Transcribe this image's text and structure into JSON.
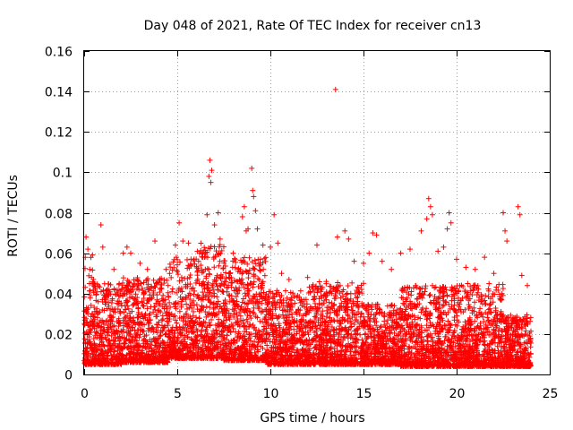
{
  "chart_data": {
    "type": "scatter",
    "title": "Day 048 of 2021, Rate Of TEC Index for receiver cn13",
    "xlabel": "GPS time / hours",
    "ylabel": "ROTI / TECUs",
    "xlim": [
      0,
      25
    ],
    "ylim": [
      0,
      0.16
    ],
    "xticks": [
      "0",
      "5",
      "10",
      "15",
      "20",
      "25"
    ],
    "yticks": [
      "0",
      "0.02",
      "0.04",
      "0.06",
      "0.08",
      "0.1",
      "0.12",
      "0.14",
      "0.16"
    ],
    "grid": true,
    "marker": "+",
    "color": "#ff0000",
    "series": [
      {
        "name": "ROTI",
        "points": [
          [
            0.1,
            0.068
          ],
          [
            0.2,
            0.062
          ],
          [
            0.3,
            0.052
          ],
          [
            0.5,
            0.047
          ],
          [
            0.9,
            0.074
          ],
          [
            1.0,
            0.063
          ],
          [
            1.6,
            0.052
          ],
          [
            2.1,
            0.06
          ],
          [
            2.3,
            0.063
          ],
          [
            2.5,
            0.06
          ],
          [
            3.0,
            0.055
          ],
          [
            3.4,
            0.052
          ],
          [
            3.8,
            0.066
          ],
          [
            4.4,
            0.052
          ],
          [
            4.9,
            0.064
          ],
          [
            5.1,
            0.075
          ],
          [
            5.3,
            0.066
          ],
          [
            5.6,
            0.065
          ],
          [
            5.9,
            0.057
          ],
          [
            6.2,
            0.06
          ],
          [
            6.6,
            0.079
          ],
          [
            6.7,
            0.098
          ],
          [
            6.75,
            0.106
          ],
          [
            6.8,
            0.095
          ],
          [
            6.85,
            0.101
          ],
          [
            7.0,
            0.074
          ],
          [
            7.2,
            0.08
          ],
          [
            7.3,
            0.067
          ],
          [
            8.0,
            0.06
          ],
          [
            8.5,
            0.078
          ],
          [
            8.6,
            0.083
          ],
          [
            8.7,
            0.071
          ],
          [
            8.8,
            0.072
          ],
          [
            9.0,
            0.102
          ],
          [
            9.05,
            0.091
          ],
          [
            9.1,
            0.088
          ],
          [
            9.2,
            0.081
          ],
          [
            9.3,
            0.072
          ],
          [
            9.6,
            0.064
          ],
          [
            10.0,
            0.063
          ],
          [
            10.2,
            0.079
          ],
          [
            10.4,
            0.065
          ],
          [
            10.6,
            0.05
          ],
          [
            11.0,
            0.047
          ],
          [
            12.0,
            0.048
          ],
          [
            12.5,
            0.064
          ],
          [
            13.0,
            0.046
          ],
          [
            13.5,
            0.141
          ],
          [
            13.6,
            0.068
          ],
          [
            14.0,
            0.071
          ],
          [
            14.2,
            0.067
          ],
          [
            14.5,
            0.056
          ],
          [
            15.0,
            0.055
          ],
          [
            15.3,
            0.06
          ],
          [
            15.5,
            0.07
          ],
          [
            15.7,
            0.069
          ],
          [
            16.0,
            0.056
          ],
          [
            16.5,
            0.052
          ],
          [
            17.0,
            0.06
          ],
          [
            17.5,
            0.062
          ],
          [
            18.1,
            0.071
          ],
          [
            18.4,
            0.077
          ],
          [
            18.5,
            0.087
          ],
          [
            18.6,
            0.083
          ],
          [
            18.7,
            0.079
          ],
          [
            19.0,
            0.061
          ],
          [
            19.3,
            0.063
          ],
          [
            19.5,
            0.072
          ],
          [
            19.6,
            0.08
          ],
          [
            19.7,
            0.075
          ],
          [
            20.0,
            0.057
          ],
          [
            20.5,
            0.053
          ],
          [
            21.0,
            0.052
          ],
          [
            21.5,
            0.058
          ],
          [
            22.0,
            0.05
          ],
          [
            22.5,
            0.08
          ],
          [
            22.6,
            0.071
          ],
          [
            22.7,
            0.066
          ],
          [
            23.3,
            0.083
          ],
          [
            23.4,
            0.079
          ],
          [
            23.5,
            0.049
          ],
          [
            23.8,
            0.044
          ]
        ],
        "bulk": [
          {
            "x": [
              0.0,
              0.5
            ],
            "ymin": 0.005,
            "ymax": 0.06
          },
          {
            "x": [
              0.5,
              2.0
            ],
            "ymin": 0.005,
            "ymax": 0.045
          },
          {
            "x": [
              2.0,
              4.5
            ],
            "ymin": 0.006,
            "ymax": 0.048
          },
          {
            "x": [
              4.5,
              6.0
            ],
            "ymin": 0.008,
            "ymax": 0.058
          },
          {
            "x": [
              6.0,
              7.5
            ],
            "ymin": 0.008,
            "ymax": 0.065
          },
          {
            "x": [
              7.5,
              9.8
            ],
            "ymin": 0.007,
            "ymax": 0.058
          },
          {
            "x": [
              9.8,
              12.0
            ],
            "ymin": 0.005,
            "ymax": 0.042
          },
          {
            "x": [
              12.0,
              15.0
            ],
            "ymin": 0.005,
            "ymax": 0.046
          },
          {
            "x": [
              15.0,
              17.0
            ],
            "ymin": 0.005,
            "ymax": 0.035
          },
          {
            "x": [
              17.0,
              19.5
            ],
            "ymin": 0.004,
            "ymax": 0.044
          },
          {
            "x": [
              19.5,
              22.5
            ],
            "ymin": 0.004,
            "ymax": 0.045
          },
          {
            "x": [
              22.5,
              24.0
            ],
            "ymin": 0.004,
            "ymax": 0.03
          }
        ]
      }
    ]
  }
}
